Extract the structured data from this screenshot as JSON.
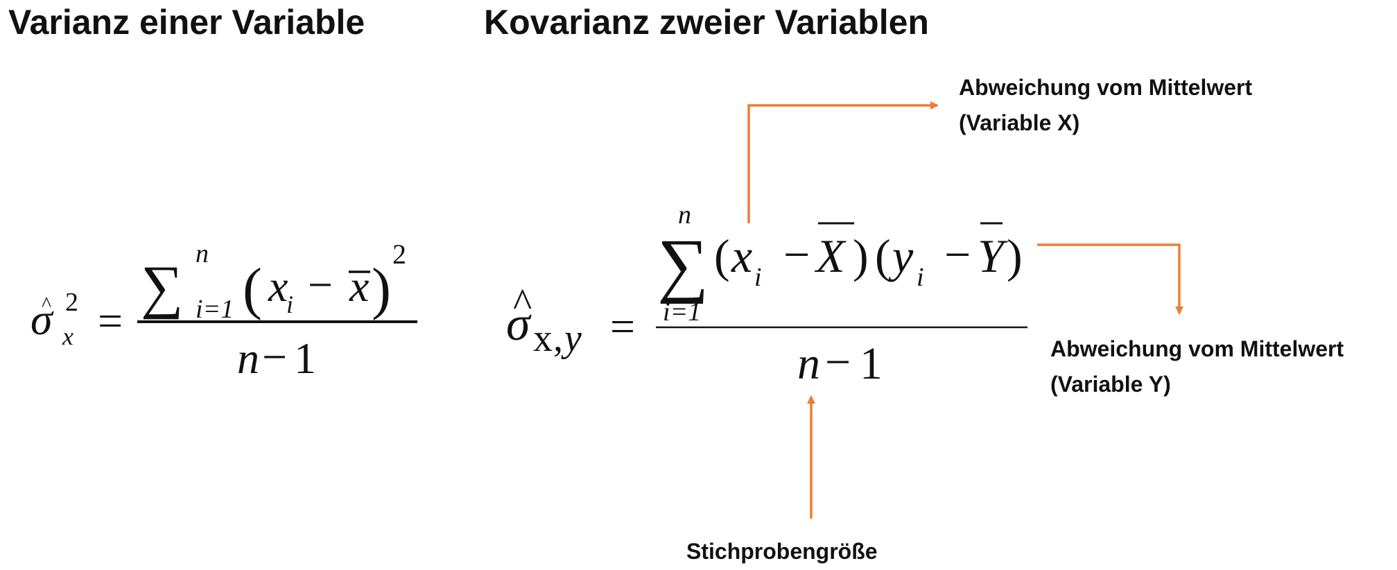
{
  "titles": {
    "variance": "Varianz einer Variable",
    "covariance": "Kovarianz zweier Variablen"
  },
  "annotations": {
    "deviation_x": [
      "Abweichung vom Mittelwert",
      "(Variable X)"
    ],
    "deviation_y": [
      "Abweichung vom Mittelwert",
      "(Variable Y)"
    ],
    "sample_size": "Stichprobengröße"
  },
  "variance_formula": {
    "sigma": "σ",
    "hat": "^",
    "sup_two": "2",
    "sub_x": "x",
    "equals": "=",
    "sum": "∑",
    "sum_upper": "n",
    "sum_lower": "i=1",
    "open_paren": "(",
    "x_var": "x",
    "index_i": "i",
    "minus": "−",
    "mean_x": "x",
    "close_paren": ")",
    "exp_two": "2",
    "den_n": "n",
    "den_minus": "−",
    "den_one": "1"
  },
  "covariance_formula": {
    "sigma": "σ",
    "hat": "^",
    "sub_xy_x": "x",
    "sub_xy_comma": ",",
    "sub_xy_y": "y",
    "equals": "=",
    "sum": "∑",
    "sum_upper": "n",
    "sum_lower": "i=1",
    "open1": "(",
    "x_var": "x",
    "idx1": "i",
    "minus1": "−",
    "mean_X": "X",
    "close1": ")",
    "open2": "(",
    "y_var": "y",
    "idx2": "i",
    "minus2": "−",
    "mean_Y": "Y",
    "close2": ")",
    "den_n": "n",
    "den_minus": "−",
    "den_one": "1"
  },
  "colors": {
    "arrow": "#ED7D31",
    "text": "#111111"
  }
}
